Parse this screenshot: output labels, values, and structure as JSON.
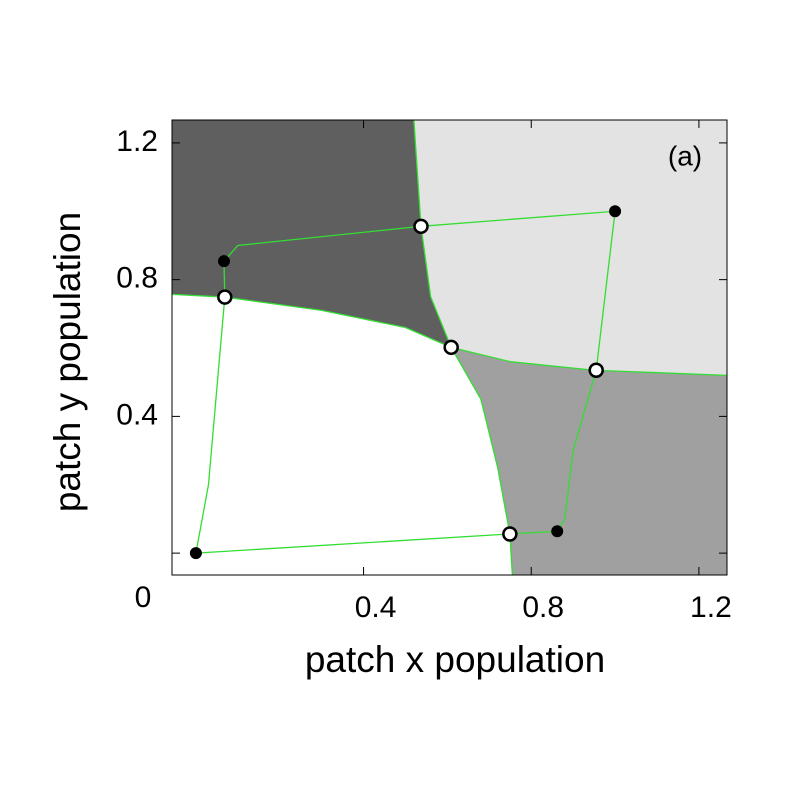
{
  "chart_data": {
    "type": "scatter",
    "xlabel": "patch x population",
    "ylabel": "patch y population",
    "annotation": "(a)",
    "xlim": [
      -0.057,
      1.267
    ],
    "ylim": [
      -0.064,
      1.267
    ],
    "xticks": [
      0.4,
      0.8,
      1.2
    ],
    "yticks": [
      0,
      0.4,
      0.8,
      1.2
    ],
    "region_colors": [
      "#5f5f5f",
      "#e3e3e3",
      "#a0a0a0"
    ],
    "series": [
      {
        "kind": "line",
        "color": "#33dd33",
        "x": [
          -0.057,
          0.069,
          0.3,
          0.5,
          0.609,
          0.75,
          0.95,
          1.267
        ],
        "values": [
          0.757,
          0.749,
          0.71,
          0.66,
          0.602,
          0.56,
          0.535,
          0.52
        ]
      },
      {
        "kind": "line",
        "color": "#33dd33",
        "x": [
          0.52,
          0.537,
          0.56,
          0.609,
          0.68,
          0.72,
          0.749,
          0.755
        ],
        "values": [
          1.267,
          0.956,
          0.75,
          0.602,
          0.45,
          0.25,
          0.056,
          -0.064
        ]
      },
      {
        "kind": "line",
        "color": "#33dd33",
        "x": [
          0,
          0.749,
          0.862,
          0.88,
          0.9,
          0.955,
          1,
          0.537,
          0.1,
          0.067,
          0.069,
          0.03,
          0
        ],
        "values": [
          0,
          0.056,
          0.064,
          0.1,
          0.3,
          0.535,
          1,
          0.956,
          0.9,
          0.854,
          0.749,
          0.2,
          0
        ]
      },
      {
        "kind": "filled",
        "color": "#000000",
        "x": [
          0,
          0.067,
          0.862,
          1
        ],
        "values": [
          0,
          0.854,
          0.064,
          1
        ]
      },
      {
        "kind": "open",
        "color": "#000000",
        "x": [
          0.069,
          0.537,
          0.609,
          0.955,
          0.749
        ],
        "values": [
          0.749,
          0.956,
          0.602,
          0.535,
          0.056
        ]
      }
    ]
  }
}
